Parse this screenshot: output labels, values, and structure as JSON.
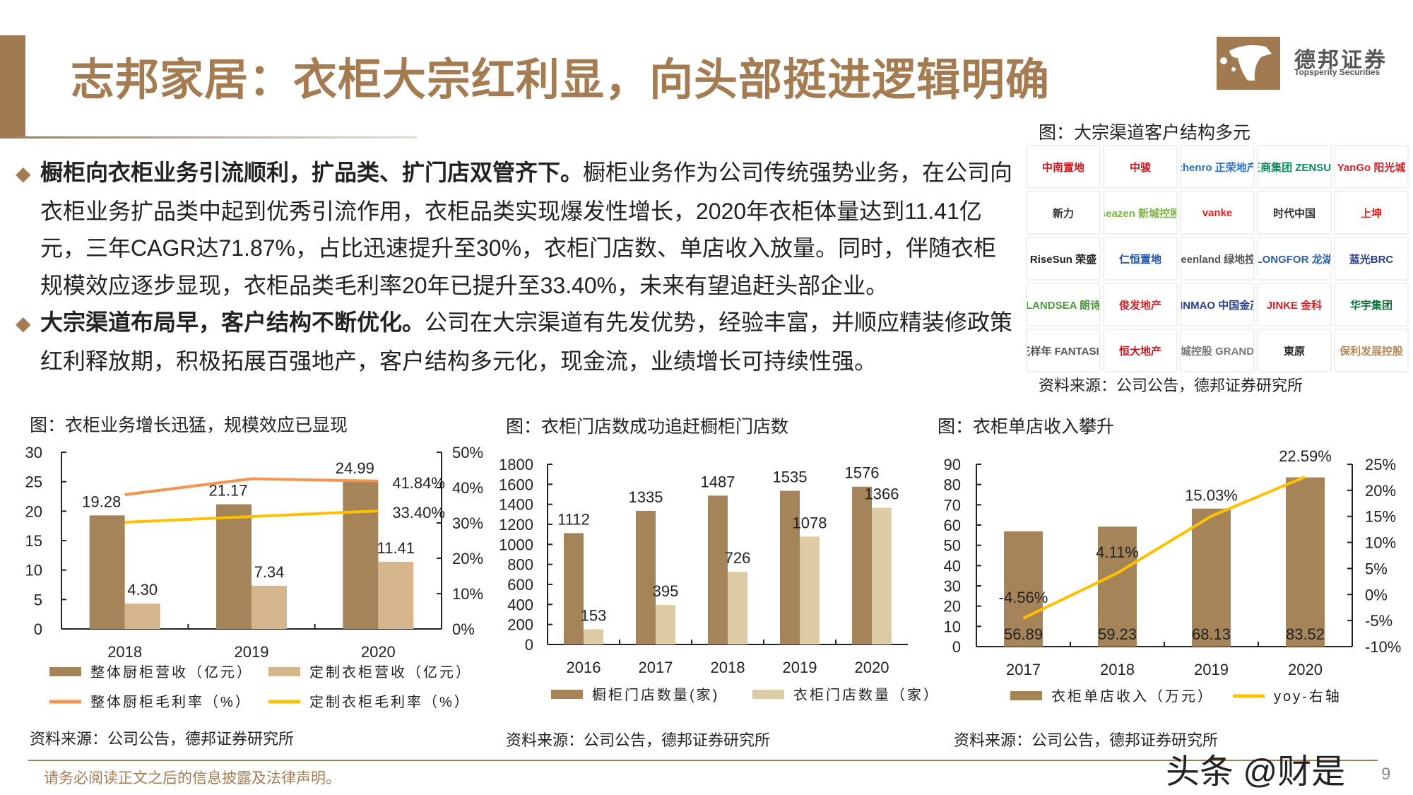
{
  "title": "志邦家居：衣柜大宗红利显，向头部挺进逻辑明确",
  "brand": {
    "cn": "德邦证券",
    "en": "Topsperity Securities"
  },
  "paragraphs": [
    {
      "lead": "橱柜向衣柜业务引流顺利，扩品类、扩门店双管齐下。",
      "body": "橱柜业务作为公司传统强势业务，在公司向衣柜业务扩品类中起到优秀引流作用，衣柜品类实现爆发性增长，2020年衣柜体量达到11.41亿元，三年CAGR达71.87%，占比迅速提升至30%，衣柜门店数、单店收入放量。同时，伴随衣柜规模效应逐步显现，衣柜品类毛利率20年已提升至33.40%，未来有望追赶头部企业。"
    },
    {
      "lead": "大宗渠道布局早，客户结构不断优化。",
      "body": "公司在大宗渠道有先发优势，经验丰富，并顺应精装修政策红利释放期，积极拓展百强地产，客户结构多元化，现金流，业绩增长可持续性强。"
    }
  ],
  "clients": {
    "caption": "图：大宗渠道客户结构多元",
    "source": "资料来源：公司公告，德邦证券研究所",
    "logos": [
      {
        "name": "中南置地",
        "color": "#c8161d"
      },
      {
        "name": "中骏",
        "color": "#c8161d"
      },
      {
        "name": "zhenro 正荣地产",
        "color": "#2a6fc9"
      },
      {
        "name": "正商集团 ZENSUN",
        "color": "#0b8a5a"
      },
      {
        "name": "YanGo 阳光城",
        "color": "#d2232a"
      },
      {
        "name": "新力",
        "color": "#333333"
      },
      {
        "name": "seazen 新城控股",
        "color": "#7cb342"
      },
      {
        "name": "vanke",
        "color": "#e2231a"
      },
      {
        "name": "时代中国",
        "color": "#333333"
      },
      {
        "name": "上坤",
        "color": "#e2231a"
      },
      {
        "name": "RiseSun 荣盛",
        "color": "#222222"
      },
      {
        "name": "仁恒置地",
        "color": "#1d4fa0"
      },
      {
        "name": "Greenland 绿地控股",
        "color": "#555555"
      },
      {
        "name": "LONGFOR 龙湖",
        "color": "#2a5fa8"
      },
      {
        "name": "蓝光BRC",
        "color": "#2a3f8f"
      },
      {
        "name": "LANDSEA 朗诗",
        "color": "#4a9a3a"
      },
      {
        "name": "俊发地产",
        "color": "#d2232a"
      },
      {
        "name": "JINMAO 中国金茂",
        "color": "#2a3f8f"
      },
      {
        "name": "JINKE 金科",
        "color": "#d2232a"
      },
      {
        "name": "华宇集团",
        "color": "#0b6b3a"
      },
      {
        "name": "花样年 FANTASIA",
        "color": "#555555"
      },
      {
        "name": "恒大地产",
        "color": "#c8161d"
      },
      {
        "name": "大悦城控股 GRANDJOY",
        "color": "#777777"
      },
      {
        "name": "東原",
        "color": "#222222"
      },
      {
        "name": "保利发展控股",
        "color": "#b8875a"
      }
    ]
  },
  "colors": {
    "brand": "#A57C52",
    "bar_dark": "#A5845A",
    "bar_light": "#D5B68C",
    "bar_cream": "#DDCBA4",
    "orange": "#F4944F",
    "yellow": "#FFC000"
  },
  "chart_data": [
    {
      "type": "bar",
      "title": "图：衣柜业务增长迅猛，规模效应已显现",
      "source": "资料来源：公司公告，德邦证券研究所",
      "categories": [
        "2018",
        "2019",
        "2020"
      ],
      "ylim": [
        0,
        30
      ],
      "yticks": [
        0,
        5,
        10,
        15,
        20,
        25,
        30
      ],
      "y2lim": [
        0,
        50
      ],
      "y2ticks": [
        "0%",
        "10%",
        "20%",
        "30%",
        "40%",
        "50%"
      ],
      "series": [
        {
          "name": "整体厨柜营收（亿元）",
          "kind": "bar",
          "axis": "left",
          "values": [
            19.28,
            21.17,
            24.99
          ],
          "labels": [
            "19.28",
            "21.17",
            "24.99"
          ]
        },
        {
          "name": "定制衣柜营收（亿元）",
          "kind": "bar",
          "axis": "left",
          "values": [
            4.3,
            7.34,
            11.41
          ],
          "labels": [
            "4.30",
            "7.34",
            "11.41"
          ]
        },
        {
          "name": "整体厨柜毛利率（%）",
          "kind": "line",
          "axis": "right",
          "values": [
            38.0,
            42.5,
            41.84
          ],
          "labels": [
            "",
            "",
            "41.84%"
          ]
        },
        {
          "name": "定制衣柜毛利率（%）",
          "kind": "line",
          "axis": "right",
          "values": [
            30.2,
            31.8,
            33.4
          ],
          "labels": [
            "",
            "",
            "33.40%"
          ]
        }
      ]
    },
    {
      "type": "bar",
      "title": "图：衣柜门店数成功追赶橱柜门店数",
      "source": "资料来源：公司公告，德邦证券研究所",
      "categories": [
        "2016",
        "2017",
        "2018",
        "2019",
        "2020"
      ],
      "ylim": [
        0,
        1800
      ],
      "yticks": [
        0,
        200,
        400,
        600,
        800,
        1000,
        1200,
        1400,
        1600,
        1800
      ],
      "series": [
        {
          "name": "橱柜门店数量(家)",
          "kind": "bar",
          "values": [
            1112,
            1335,
            1487,
            1535,
            1576
          ],
          "labels": [
            "1112",
            "1335",
            "1487",
            "1535",
            "1576"
          ]
        },
        {
          "name": "衣柜门店数量（家）",
          "kind": "bar",
          "values": [
            153,
            395,
            726,
            1078,
            1366
          ],
          "labels": [
            "153",
            "395",
            "726",
            "1078",
            "1366"
          ]
        }
      ]
    },
    {
      "type": "bar",
      "title": "图：衣柜单店收入攀升",
      "source": "资料来源：公司公告，德邦证券研究所",
      "categories": [
        "2017",
        "2018",
        "2019",
        "2020"
      ],
      "ylim": [
        0,
        90
      ],
      "yticks": [
        0,
        10,
        20,
        30,
        40,
        50,
        60,
        70,
        80,
        90
      ],
      "y2lim": [
        -10,
        25
      ],
      "y2ticks": [
        "-10%",
        "-5%",
        "0%",
        "5%",
        "10%",
        "15%",
        "20%",
        "25%"
      ],
      "series": [
        {
          "name": "衣柜单店收入（万元）",
          "kind": "bar",
          "axis": "left",
          "values": [
            56.89,
            59.23,
            68.13,
            83.52
          ],
          "labels": [
            "56.89",
            "59.23",
            "68.13",
            "83.52"
          ]
        },
        {
          "name": "yoy-右轴",
          "kind": "line",
          "axis": "right",
          "values": [
            -4.56,
            4.11,
            15.03,
            22.59
          ],
          "labels": [
            "-4.56%",
            "4.11%",
            "15.03%",
            "22.59%"
          ]
        }
      ]
    }
  ],
  "footer": {
    "disclaimer": "请务必阅读正文之后的信息披露及法律声明。",
    "page": "9",
    "watermark": "头条 @财是"
  }
}
